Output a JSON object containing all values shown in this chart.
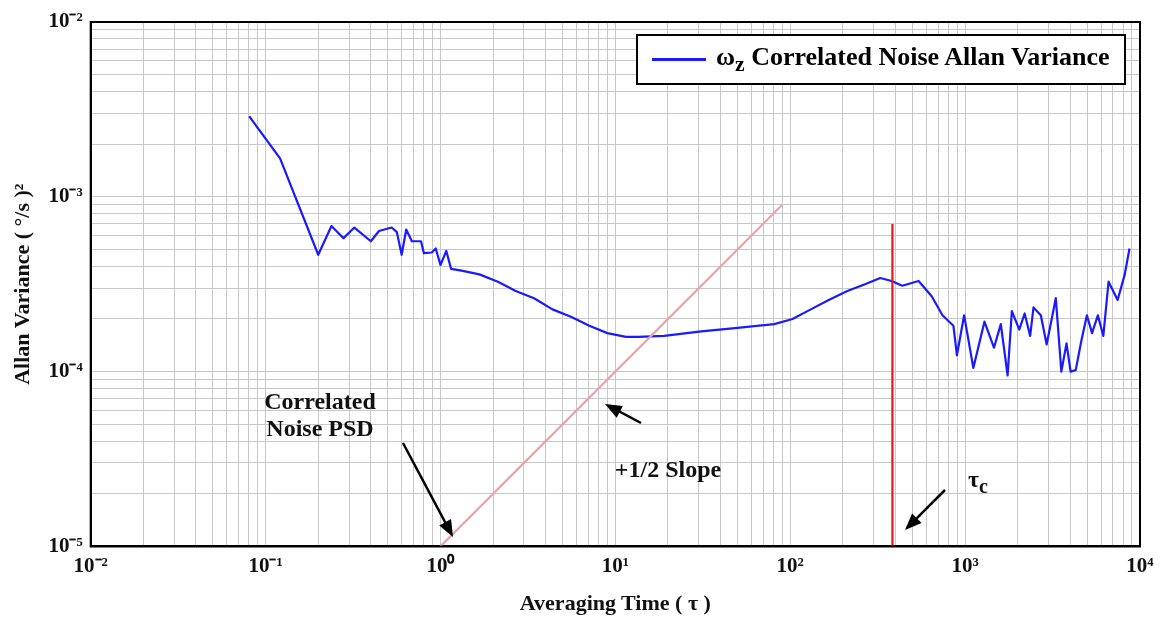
{
  "chart_data": {
    "type": "line",
    "xlabel": "Averaging Time ( τ )",
    "ylabel": "Allan Variance ( °/s )²",
    "log": "xy",
    "grid": true,
    "legend": "top right",
    "marker": "none",
    "line_style": "solid",
    "xlim": [
      0.01,
      10000
    ],
    "ylim": [
      1e-05,
      0.01
    ],
    "xticks": [
      {
        "value": 0.01,
        "label": "10⁻²"
      },
      {
        "value": 0.02,
        "label": null
      },
      {
        "value": 0.03,
        "label": null
      },
      {
        "value": 0.04,
        "label": null
      },
      {
        "value": 0.05,
        "label": null
      },
      {
        "value": 0.06,
        "label": null
      },
      {
        "value": 0.07,
        "label": null
      },
      {
        "value": 0.08,
        "label": null
      },
      {
        "value": 0.09,
        "label": null
      },
      {
        "value": 0.1,
        "label": "10⁻¹"
      },
      {
        "value": 0.2,
        "label": null
      },
      {
        "value": 0.3,
        "label": null
      },
      {
        "value": 0.4,
        "label": null
      },
      {
        "value": 0.5,
        "label": null
      },
      {
        "value": 0.6,
        "label": null
      },
      {
        "value": 0.7,
        "label": null
      },
      {
        "value": 0.8,
        "label": null
      },
      {
        "value": 0.9,
        "label": null
      },
      {
        "value": 1,
        "label": "10⁰"
      },
      {
        "value": 2,
        "label": null
      },
      {
        "value": 3,
        "label": null
      },
      {
        "value": 4,
        "label": null
      },
      {
        "value": 5,
        "label": null
      },
      {
        "value": 6,
        "label": null
      },
      {
        "value": 7,
        "label": null
      },
      {
        "value": 8,
        "label": null
      },
      {
        "value": 9,
        "label": null
      },
      {
        "value": 10,
        "label": "10¹"
      },
      {
        "value": 20,
        "label": null
      },
      {
        "value": 30,
        "label": null
      },
      {
        "value": 40,
        "label": null
      },
      {
        "value": 50,
        "label": null
      },
      {
        "value": 60,
        "label": null
      },
      {
        "value": 70,
        "label": null
      },
      {
        "value": 80,
        "label": null
      },
      {
        "value": 90,
        "label": null
      },
      {
        "value": 100,
        "label": "10²"
      },
      {
        "value": 200,
        "label": null
      },
      {
        "value": 300,
        "label": null
      },
      {
        "value": 400,
        "label": null
      },
      {
        "value": 500,
        "label": null
      },
      {
        "value": 600,
        "label": null
      },
      {
        "value": 700,
        "label": null
      },
      {
        "value": 800,
        "label": null
      },
      {
        "value": 900,
        "label": null
      },
      {
        "value": 1000,
        "label": "10³"
      },
      {
        "value": 2000,
        "label": null
      },
      {
        "value": 3000,
        "label": null
      },
      {
        "value": 4000,
        "label": null
      },
      {
        "value": 5000,
        "label": null
      },
      {
        "value": 6000,
        "label": null
      },
      {
        "value": 7000,
        "label": null
      },
      {
        "value": 8000,
        "label": null
      },
      {
        "value": 9000,
        "label": null
      },
      {
        "value": 10000,
        "label": "10⁴"
      }
    ],
    "yticks": [
      {
        "value": 1e-05,
        "label": "10⁻⁵"
      },
      {
        "value": 2e-05,
        "label": null
      },
      {
        "value": 3e-05,
        "label": null
      },
      {
        "value": 4e-05,
        "label": null
      },
      {
        "value": 5e-05,
        "label": null
      },
      {
        "value": 6e-05,
        "label": null
      },
      {
        "value": 7e-05,
        "label": null
      },
      {
        "value": 8e-05,
        "label": null
      },
      {
        "value": 9e-05,
        "label": null
      },
      {
        "value": 0.0001,
        "label": "10⁻⁴"
      },
      {
        "value": 0.0002,
        "label": null
      },
      {
        "value": 0.0003,
        "label": null
      },
      {
        "value": 0.0004,
        "label": null
      },
      {
        "value": 0.0005,
        "label": null
      },
      {
        "value": 0.0006,
        "label": null
      },
      {
        "value": 0.0007,
        "label": null
      },
      {
        "value": 0.0008,
        "label": null
      },
      {
        "value": 0.0009,
        "label": null
      },
      {
        "value": 0.001,
        "label": "10⁻³"
      },
      {
        "value": 0.002,
        "label": null
      },
      {
        "value": 0.003,
        "label": null
      },
      {
        "value": 0.004,
        "label": null
      },
      {
        "value": 0.005,
        "label": null
      },
      {
        "value": 0.006,
        "label": null
      },
      {
        "value": 0.007,
        "label": null
      },
      {
        "value": 0.008,
        "label": null
      },
      {
        "value": 0.009,
        "label": null
      },
      {
        "value": 0.01,
        "label": "10⁻²"
      }
    ],
    "series": [
      {
        "name": "ω$_{z}$ Correlated Noise Allan Variance",
        "color": "#1a1aff",
        "x": [
          0.0806,
          0.121,
          0.2,
          0.238,
          0.279,
          0.322,
          0.4,
          0.445,
          0.526,
          0.563,
          0.6,
          0.637,
          0.686,
          0.774,
          0.804,
          0.891,
          0.94,
          1.0,
          1.08,
          1.15,
          1.32,
          1.67,
          2.13,
          2.69,
          3.43,
          4.37,
          5.57,
          7.1,
          9.0,
          11.5,
          13.5,
          19,
          31,
          50,
          81,
          103,
          131,
          166,
          212,
          270,
          327,
          380,
          437,
          542,
          644,
          742,
          857,
          898,
          987,
          1114,
          1290,
          1462,
          1600,
          1750,
          1850,
          2040,
          2190,
          2355,
          2460,
          2710,
          2925,
          3300,
          3550,
          3800,
          4010,
          4290,
          4620,
          4970,
          5320,
          5740,
          6170,
          6610,
          7450,
          8180,
          8710
        ],
        "values": [
          0.00289,
          0.00166,
          0.000466,
          0.00068,
          0.00058,
          0.000667,
          0.000557,
          0.000637,
          0.000667,
          0.000628,
          0.000466,
          0.00065,
          0.000557,
          0.000557,
          0.000476,
          0.00048,
          0.000506,
          0.000407,
          0.00049,
          0.000387,
          0.000378,
          0.00036,
          0.000327,
          0.000289,
          0.000263,
          0.000227,
          0.000206,
          0.000183,
          0.000166,
          0.000158,
          0.000158,
          0.00016,
          0.00017,
          0.000178,
          0.000187,
          0.0002,
          0.000227,
          0.000257,
          0.000289,
          0.000317,
          0.000343,
          0.00033,
          0.00031,
          0.00033,
          0.00027,
          0.00021,
          0.000183,
          0.000124,
          0.00021,
          0.000105,
          0.000193,
          0.000137,
          0.000187,
          9.5e-05,
          0.000222,
          0.000174,
          0.000215,
          0.00016,
          0.000233,
          0.00021,
          0.000143,
          0.000263,
          0.0001,
          0.000145,
          0.0001,
          0.000102,
          0.00015,
          0.00021,
          0.000166,
          0.00021,
          0.00016,
          0.000327,
          0.000257,
          0.00036,
          0.000506
        ]
      },
      {
        "type": "line",
        "color": "#f0a0a8",
        "x": [
          1,
          90
        ],
        "values": [
          1e-05,
          0.0009
        ]
      },
      {
        "type": "line",
        "color": "#e8141e",
        "x": [
          384,
          384
        ],
        "values": [
          1e-05,
          0.0007
        ]
      }
    ],
    "annotations": [
      "Correlated Noise PSD",
      "+1/2 Slope",
      "τ$_{c}$"
    ]
  }
}
